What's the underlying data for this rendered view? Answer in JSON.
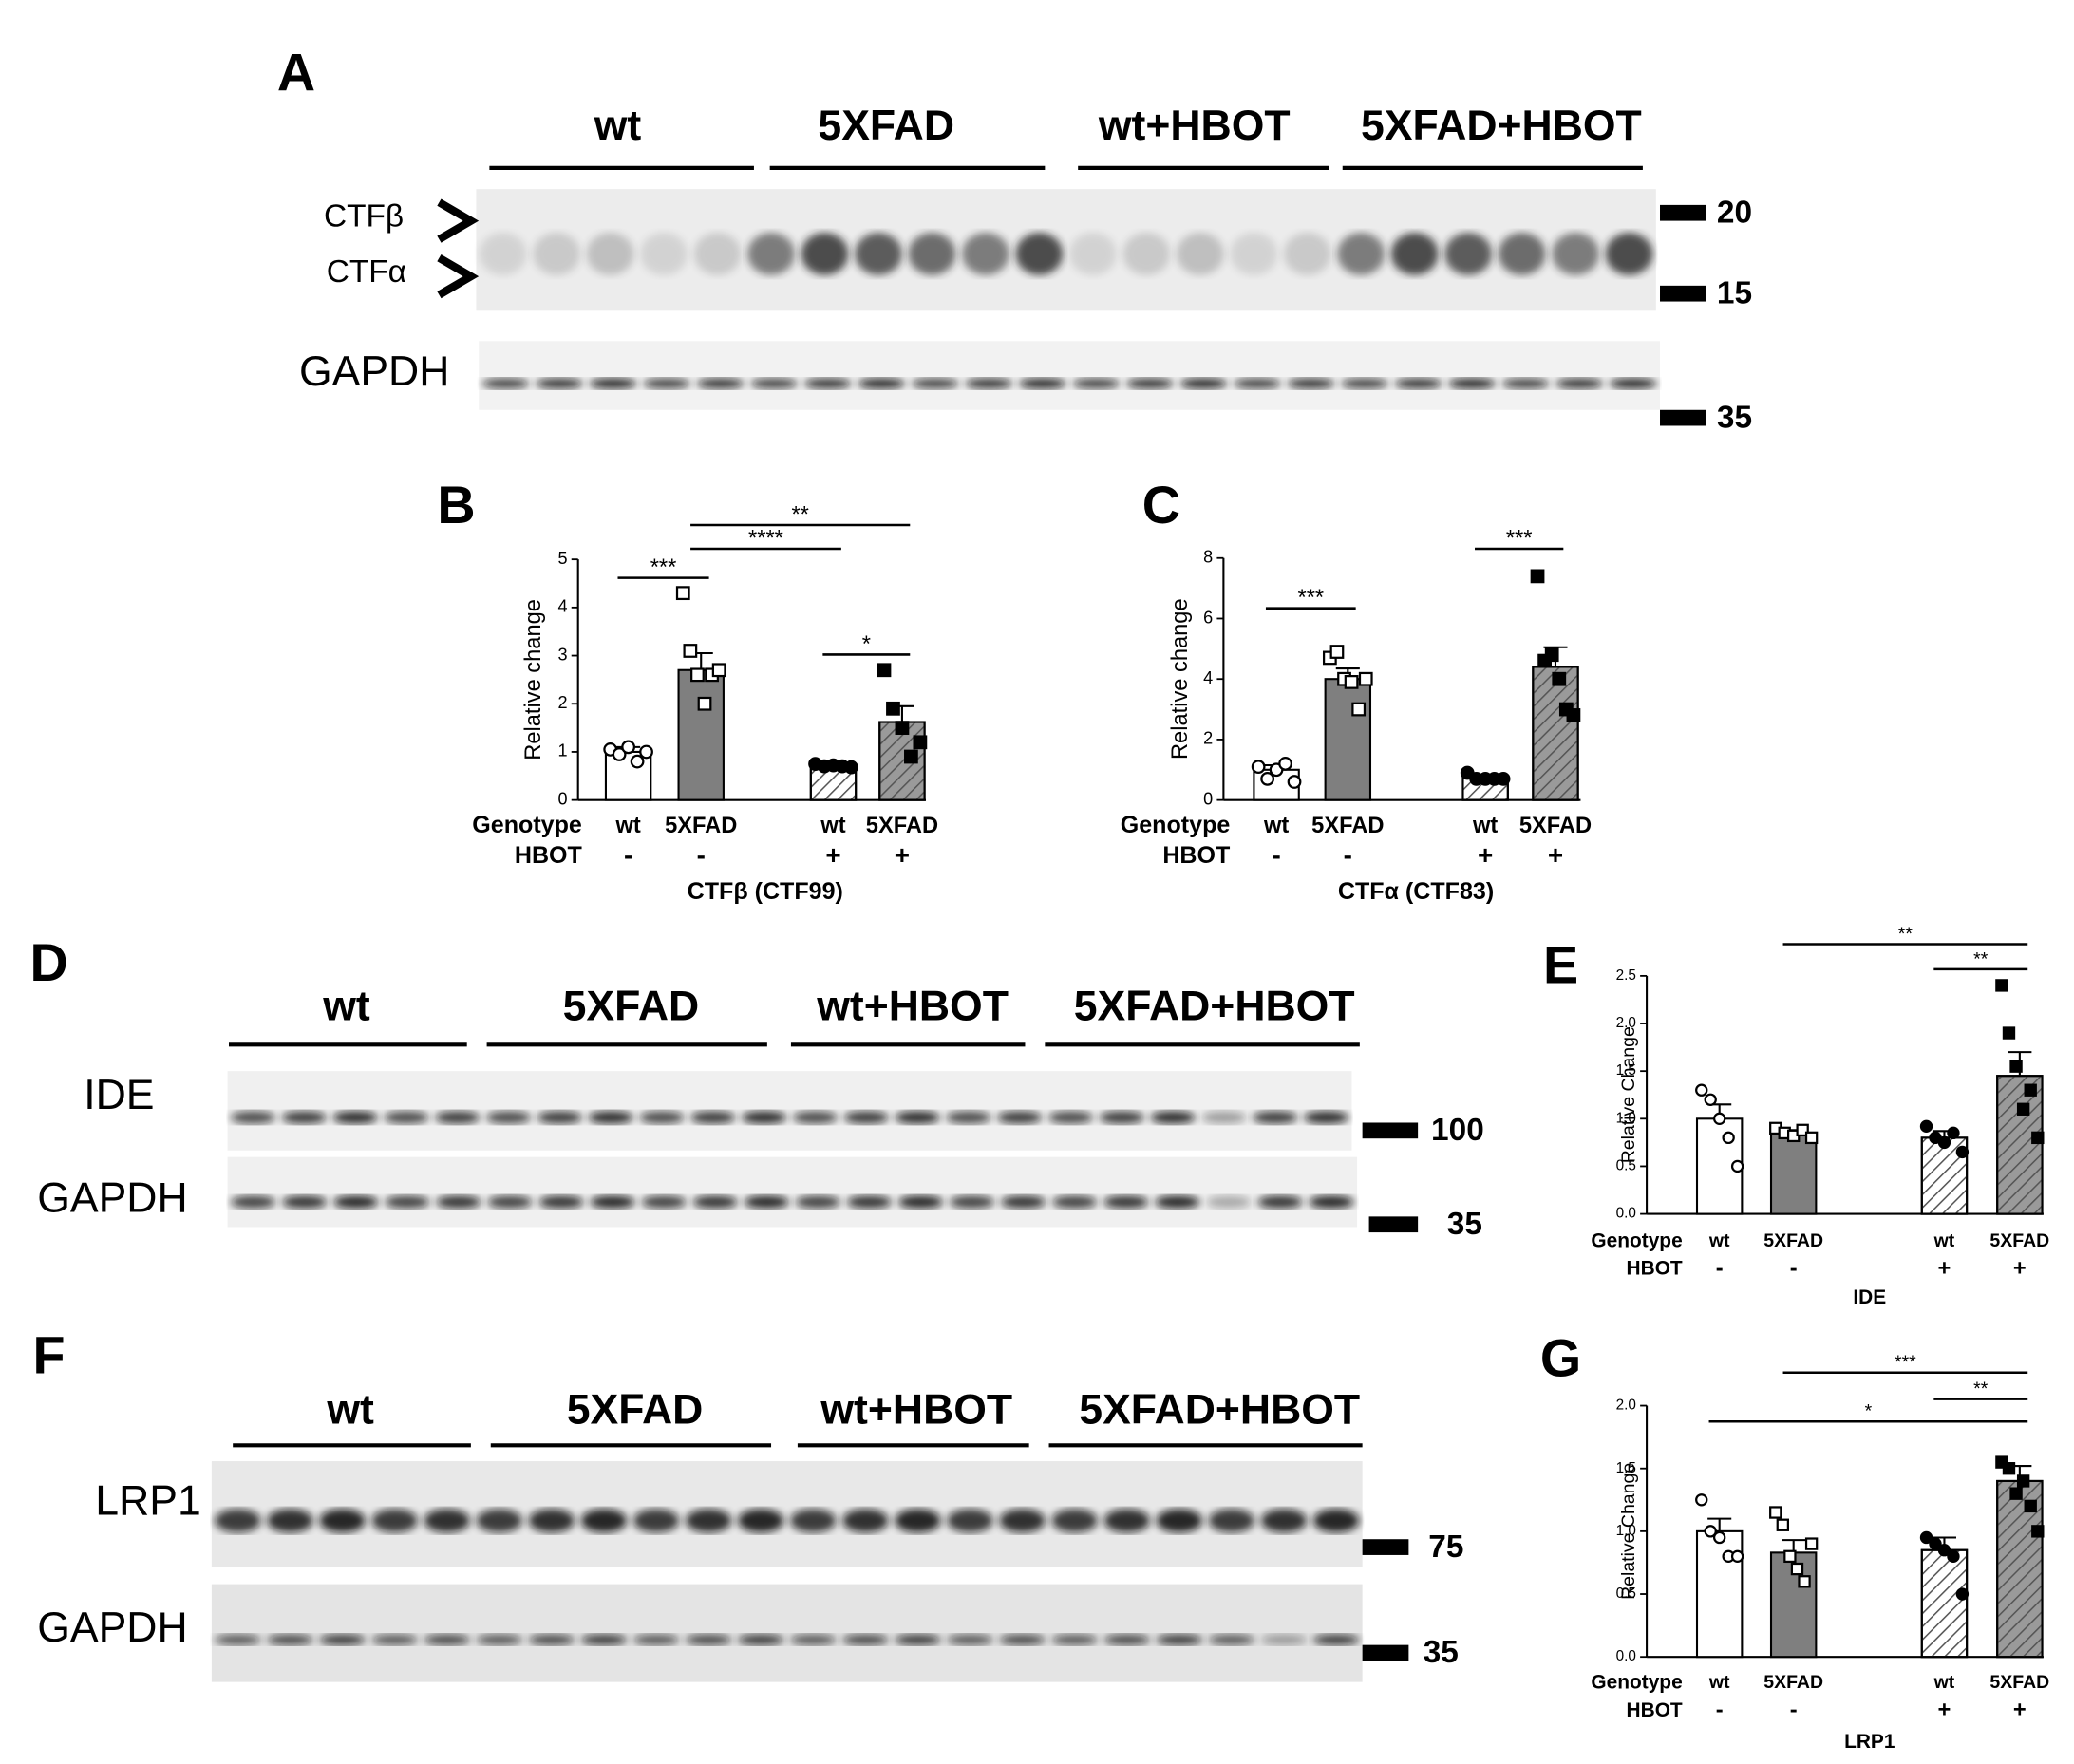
{
  "figure": {
    "A": {
      "letter": "A",
      "groups": [
        "wt",
        "5XFAD",
        "wt+HBOT",
        "5XFAD+HBOT"
      ],
      "bands": [
        "CTFβ",
        "CTFα"
      ],
      "loading": "GAPDH",
      "markers": [
        "20",
        "15",
        "35"
      ]
    },
    "D": {
      "letter": "D",
      "groups": [
        "wt",
        "5XFAD",
        "wt+HBOT",
        "5XFAD+HBOT"
      ],
      "target": "IDE",
      "loading": "GAPDH",
      "markers": [
        "100",
        "35"
      ]
    },
    "F": {
      "letter": "F",
      "groups": [
        "wt",
        "5XFAD",
        "wt+HBOT",
        "5XFAD+HBOT"
      ],
      "target": "LRP1",
      "loading": "GAPDH",
      "markers": [
        "75",
        "35"
      ]
    }
  },
  "chart_data": [
    {
      "type": "bar",
      "panel": "B",
      "ylabel": "Relative change",
      "xlabel": "CTFβ (CTF99)",
      "row_labels": [
        "Genotype",
        "HBOT"
      ],
      "categories": [
        "wt",
        "5XFAD",
        "wt",
        "5XFAD"
      ],
      "hbot": [
        "-",
        "-",
        "+",
        "+"
      ],
      "values": [
        1.0,
        2.7,
        0.72,
        1.62
      ],
      "errors": [
        0.1,
        0.35,
        0.03,
        0.33
      ],
      "points": [
        [
          1.05,
          0.95,
          1.1,
          0.8,
          1.0
        ],
        [
          4.3,
          3.1,
          2.6,
          2.0,
          2.6,
          2.7
        ],
        [
          0.75,
          0.7,
          0.72,
          0.7,
          0.68
        ],
        [
          2.7,
          1.9,
          1.5,
          0.9,
          1.2
        ]
      ],
      "colors": [
        "#ffffff",
        "#7f7f7f",
        "#ffffff",
        "#9a9a9a"
      ],
      "hatched": [
        false,
        false,
        true,
        true
      ],
      "ylim": [
        0,
        5
      ],
      "yticks": [
        0,
        1,
        2,
        3,
        4,
        5
      ],
      "significance": [
        {
          "label": "***",
          "from": 0,
          "to": 1
        },
        {
          "label": "****",
          "from": 1,
          "to": 2
        },
        {
          "label": "**",
          "from": 1,
          "to": 3
        },
        {
          "label": "*",
          "from": 2,
          "to": 3
        }
      ]
    },
    {
      "type": "bar",
      "panel": "C",
      "ylabel": "Relative change",
      "xlabel": "CTFα (CTF83)",
      "row_labels": [
        "Genotype",
        "HBOT"
      ],
      "categories": [
        "wt",
        "5XFAD",
        "wt",
        "5XFAD"
      ],
      "hbot": [
        "-",
        "-",
        "+",
        "+"
      ],
      "values": [
        1.0,
        4.0,
        0.75,
        4.4
      ],
      "errors": [
        0.15,
        0.35,
        0.1,
        0.65
      ],
      "points": [
        [
          1.1,
          0.7,
          1.0,
          1.2,
          0.6
        ],
        [
          4.7,
          4.9,
          4.0,
          3.9,
          3.0,
          4.0
        ],
        [
          0.9,
          0.7,
          0.7,
          0.7,
          0.7
        ],
        [
          7.4,
          4.6,
          4.8,
          4.0,
          3.0,
          2.8
        ]
      ],
      "colors": [
        "#ffffff",
        "#7f7f7f",
        "#ffffff",
        "#9a9a9a"
      ],
      "hatched": [
        false,
        false,
        true,
        true
      ],
      "ylim": [
        0,
        8
      ],
      "yticks": [
        0,
        2,
        4,
        6,
        8
      ],
      "significance": [
        {
          "label": "***",
          "from": 0,
          "to": 1
        },
        {
          "label": "***",
          "from": 2,
          "to": 3
        }
      ]
    },
    {
      "type": "bar",
      "panel": "E",
      "ylabel": "Relative Change",
      "xlabel": "IDE",
      "row_labels": [
        "Genotype",
        "HBOT"
      ],
      "categories": [
        "wt",
        "5XFAD",
        "wt",
        "5XFAD"
      ],
      "hbot": [
        "-",
        "-",
        "+",
        "+"
      ],
      "values": [
        1.0,
        0.85,
        0.8,
        1.45
      ],
      "errors": [
        0.15,
        0.03,
        0.07,
        0.25
      ],
      "points": [
        [
          1.3,
          1.2,
          1.0,
          0.8,
          0.5
        ],
        [
          0.9,
          0.85,
          0.82,
          0.88,
          0.8
        ],
        [
          0.92,
          0.8,
          0.75,
          0.85,
          0.65
        ],
        [
          2.4,
          1.9,
          1.55,
          1.1,
          1.3,
          0.8
        ]
      ],
      "colors": [
        "#ffffff",
        "#7f7f7f",
        "#ffffff",
        "#9a9a9a"
      ],
      "hatched": [
        false,
        false,
        true,
        true
      ],
      "ylim": [
        0,
        2.5
      ],
      "yticks": [
        {
          "value": 0,
          "label": "0.0"
        },
        {
          "value": 0.5,
          "label": "0.5"
        },
        {
          "value": 1,
          "label": "1.0"
        },
        {
          "value": 1.5,
          "label": "1.5"
        },
        {
          "value": 2,
          "label": "2.0"
        },
        2.5
      ],
      "significance": [
        {
          "label": "**",
          "from": 1,
          "to": 3
        },
        {
          "label": "**",
          "from": 2,
          "to": 3
        }
      ]
    },
    {
      "type": "bar",
      "panel": "G",
      "ylabel": "Relative Change",
      "xlabel": "LRP1",
      "row_labels": [
        "Genotype",
        "HBOT"
      ],
      "categories": [
        "wt",
        "5XFAD",
        "wt",
        "5XFAD"
      ],
      "hbot": [
        "-",
        "-",
        "+",
        "+"
      ],
      "values": [
        1.0,
        0.83,
        0.85,
        1.4
      ],
      "errors": [
        0.1,
        0.1,
        0.1,
        0.12
      ],
      "points": [
        [
          1.25,
          1.0,
          0.95,
          0.8,
          0.8
        ],
        [
          1.15,
          1.05,
          0.8,
          0.7,
          0.6,
          0.9
        ],
        [
          0.95,
          0.9,
          0.85,
          0.8,
          0.5
        ],
        [
          1.55,
          1.5,
          1.3,
          1.4,
          1.2,
          1.0
        ]
      ],
      "colors": [
        "#ffffff",
        "#7f7f7f",
        "#ffffff",
        "#9a9a9a"
      ],
      "hatched": [
        false,
        false,
        true,
        true
      ],
      "ylim": [
        0,
        2
      ],
      "yticks": [
        {
          "value": 0,
          "label": "0.0"
        },
        {
          "value": 0.5,
          "label": "0.5"
        },
        {
          "value": 1,
          "label": "1.0"
        },
        {
          "value": 1.5,
          "label": "1.5"
        },
        {
          "value": 2,
          "label": "2.0"
        }
      ],
      "significance": [
        {
          "label": "***",
          "from": 1,
          "to": 3
        },
        {
          "label": "**",
          "from": 2,
          "to": 3
        },
        {
          "label": "*",
          "from": 0,
          "to": 3
        }
      ]
    }
  ]
}
